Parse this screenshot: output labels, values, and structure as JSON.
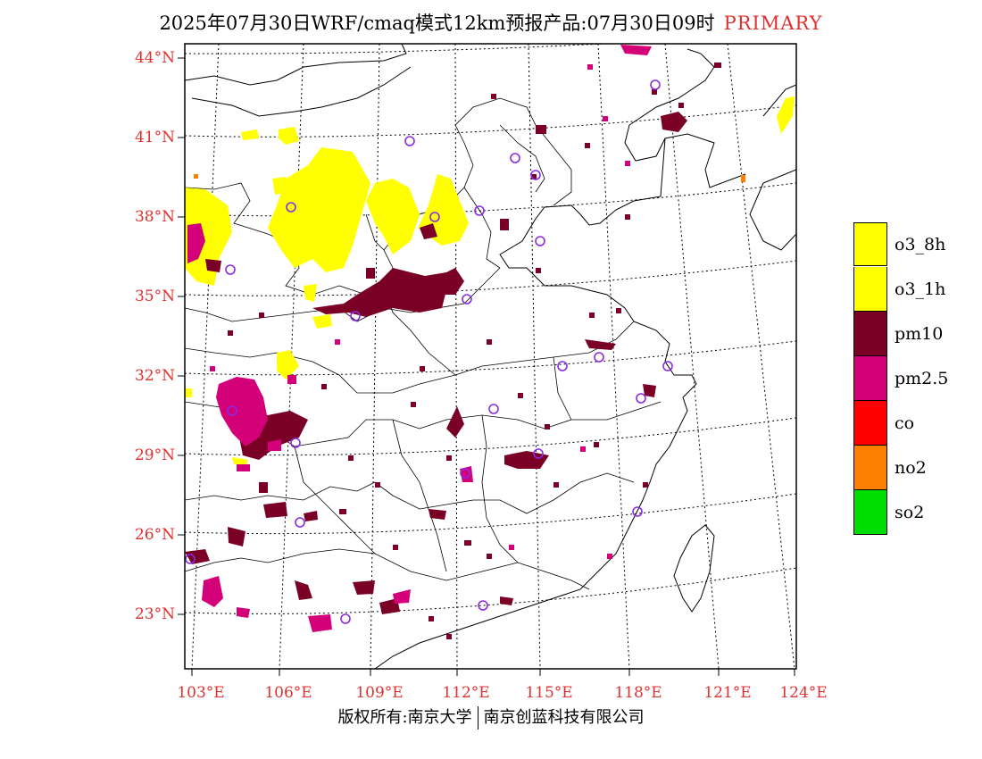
{
  "title": {
    "main": "2025年07月30日WRF/cmaq模式12km预报产品:07月30日09时",
    "tag": "PRIMARY"
  },
  "axes": {
    "lat_labels": [
      "44°N",
      "41°N",
      "38°N",
      "35°N",
      "32°N",
      "29°N",
      "26°N",
      "23°N"
    ],
    "lon_labels": [
      "103°E",
      "106°E",
      "109°E",
      "112°E",
      "115°E",
      "118°E",
      "121°E",
      "124°E"
    ]
  },
  "legend": [
    {
      "label": "o3_8h",
      "color": "#ffff00"
    },
    {
      "label": "o3_1h",
      "color": "#ffff00"
    },
    {
      "label": "pm10",
      "color": "#7a0025"
    },
    {
      "label": "pm2.5",
      "color": "#d4007a"
    },
    {
      "label": "co",
      "color": "#ff0000"
    },
    {
      "label": "no2",
      "color": "#ff8000"
    },
    {
      "label": "so2",
      "color": "#00dd00"
    }
  ],
  "footer": {
    "left": "版权所有:南京大学",
    "right": "南京创蓝科技有限公司"
  },
  "colors": {
    "accent_red": "#e03030",
    "station_circle": "#8a2be2"
  }
}
